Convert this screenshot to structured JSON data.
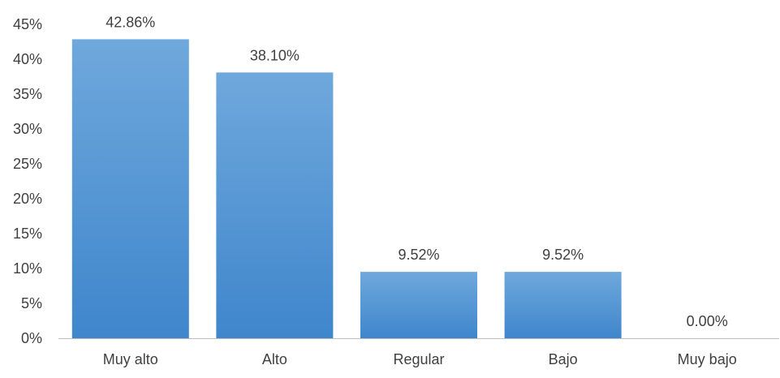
{
  "chart_data": {
    "type": "bar",
    "title": "",
    "xlabel": "",
    "ylabel": "",
    "categories": [
      "Muy alto",
      "Alto",
      "Regular",
      "Bajo",
      "Muy bajo"
    ],
    "values": [
      42.86,
      38.1,
      9.52,
      9.52,
      0.0
    ],
    "data_labels": [
      "42.86%",
      "38.10%",
      "9.52%",
      "9.52%",
      "0.00%"
    ],
    "ylim": [
      0,
      45
    ],
    "y_ticks": [
      0,
      5,
      10,
      15,
      20,
      25,
      30,
      35,
      40,
      45
    ],
    "y_tick_labels": [
      "0%",
      "5%",
      "10%",
      "15%",
      "20%",
      "25%",
      "30%",
      "35%",
      "40%",
      "45%"
    ],
    "grid": false,
    "legend": "none",
    "colors": {
      "bar_top": "#6FA8DC",
      "bar_bottom": "#3F86CC",
      "axis": "#BFBFBF",
      "text": "#404040"
    }
  }
}
